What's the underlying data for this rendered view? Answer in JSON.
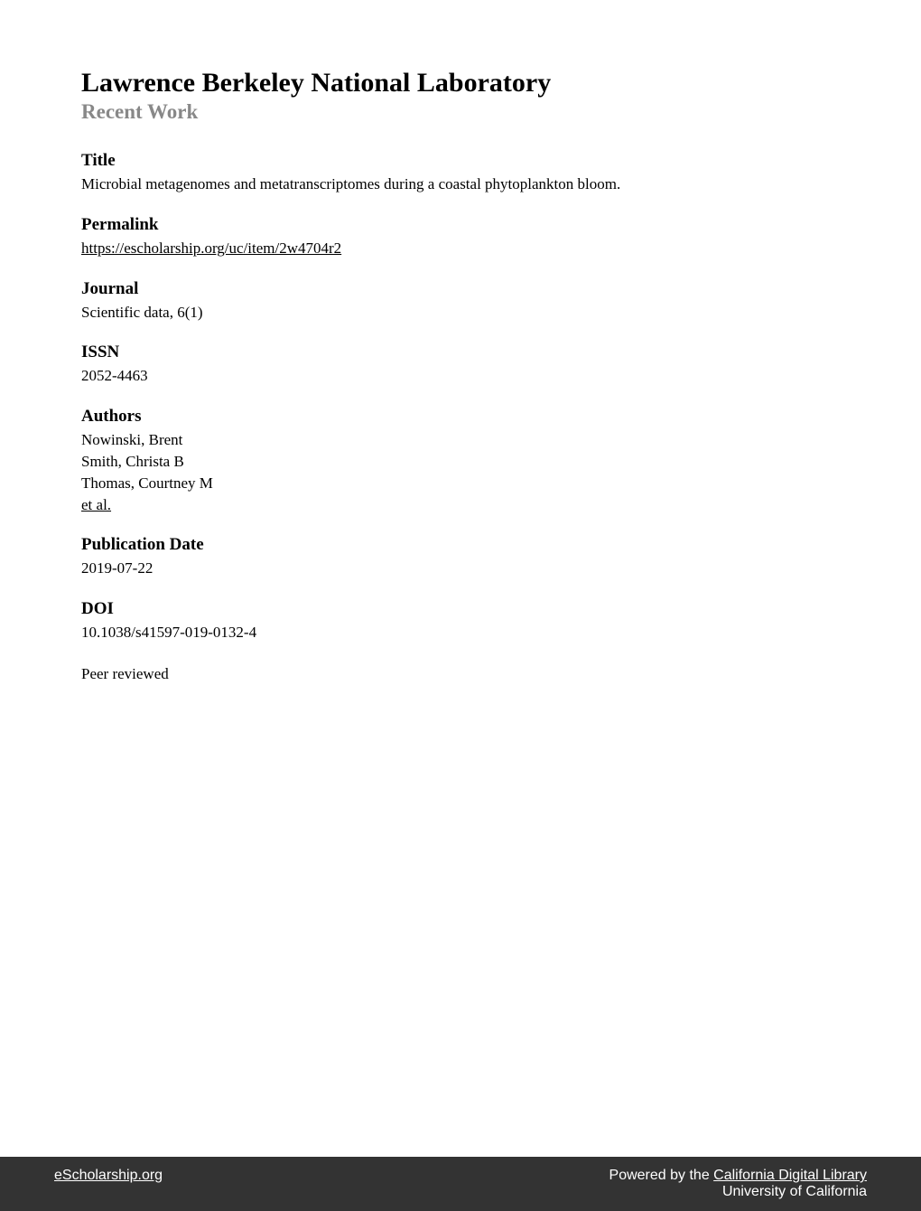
{
  "header": {
    "title": "Lawrence Berkeley National Laboratory",
    "subtitle": "Recent Work"
  },
  "sections": {
    "title": {
      "heading": "Title",
      "content": "Microbial metagenomes and metatranscriptomes during a coastal phytoplankton bloom."
    },
    "permalink": {
      "heading": "Permalink",
      "content": "https://escholarship.org/uc/item/2w4704r2"
    },
    "journal": {
      "heading": "Journal",
      "content": "Scientific data, 6(1)"
    },
    "issn": {
      "heading": "ISSN",
      "content": "2052-4463"
    },
    "authors": {
      "heading": "Authors",
      "list": [
        "Nowinski, Brent",
        "Smith, Christa B",
        "Thomas, Courtney M"
      ],
      "etal": "et al."
    },
    "pubdate": {
      "heading": "Publication Date",
      "content": "2019-07-22"
    },
    "doi": {
      "heading": "DOI",
      "content": "10.1038/s41597-019-0132-4"
    },
    "peer": {
      "content": "Peer reviewed"
    }
  },
  "footer": {
    "left": "eScholarship.org",
    "poweredBy": "Powered by the ",
    "cdl": "California Digital Library",
    "uc": "University of California"
  },
  "colors": {
    "background": "#ffffff",
    "text": "#000000",
    "subtitle": "#888888",
    "footerBg": "#333333",
    "footerText": "#ffffff"
  }
}
